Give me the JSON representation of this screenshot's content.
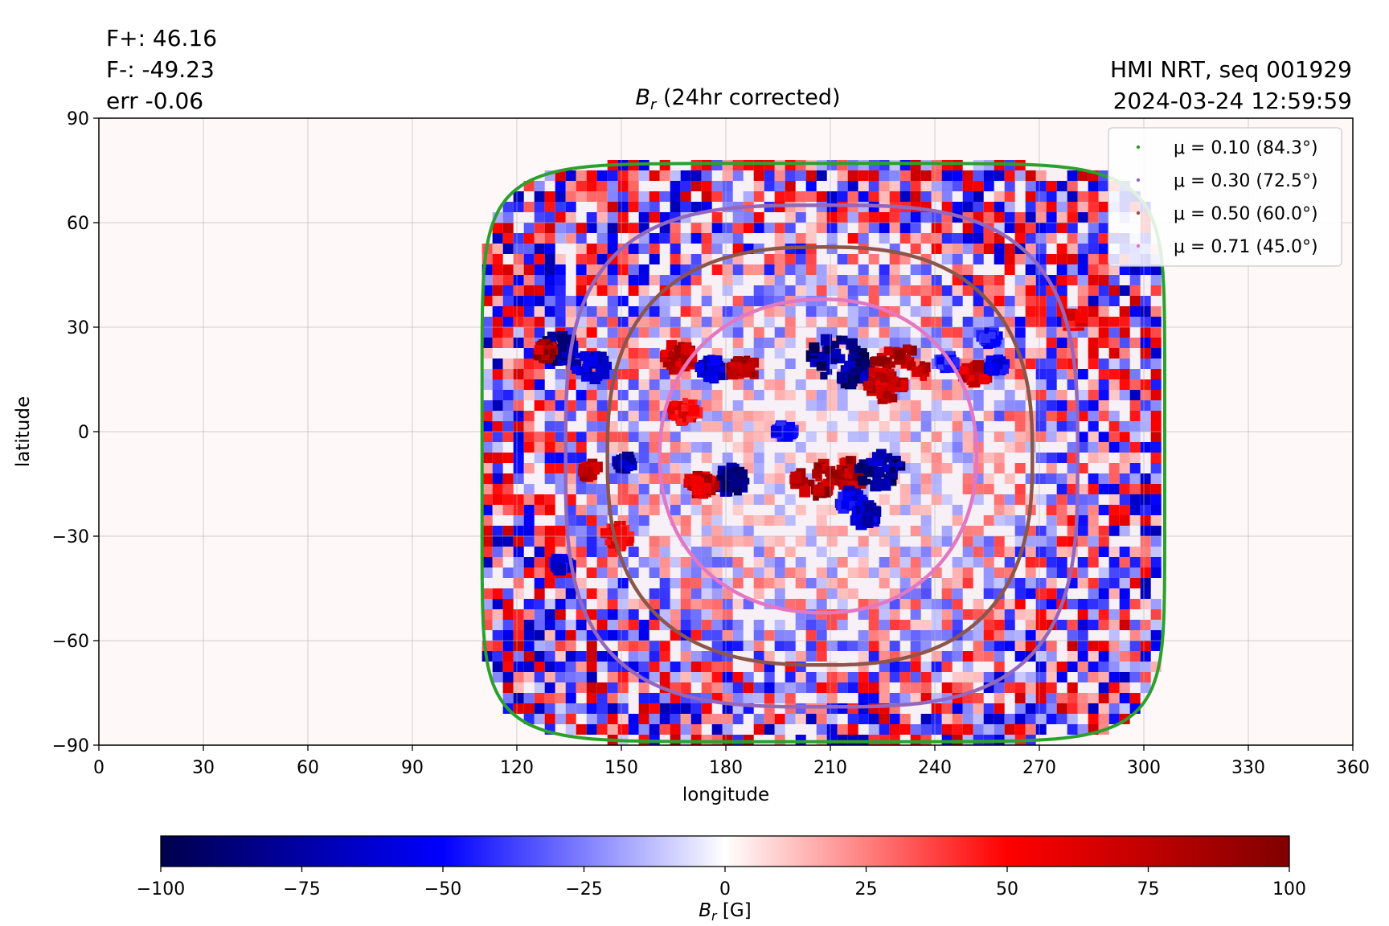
{
  "header": {
    "flux_pos": "F+: 46.16",
    "flux_neg": "F-: -49.23",
    "err": "err -0.06",
    "source": "HMI NRT, seq 001929",
    "timestamp": "2024-03-24 12:59:59"
  },
  "chart_data": {
    "type": "heatmap",
    "title_symbol": "B",
    "title_sub": "r",
    "title_rest": " (24hr corrected)",
    "xlabel": "longitude",
    "ylabel": "latitude",
    "xlim": [
      0,
      360
    ],
    "ylim": [
      -90,
      90
    ],
    "xticks": [
      0,
      30,
      60,
      90,
      120,
      150,
      180,
      210,
      240,
      270,
      300,
      330,
      360
    ],
    "yticks": [
      -90,
      -60,
      -30,
      0,
      30,
      60,
      90
    ],
    "ytick_labels": [
      "−90",
      "−60",
      "−30",
      "0",
      "30",
      "60",
      "90"
    ],
    "grid": true,
    "legend_position": "top-right",
    "disk_center": {
      "lon": 208,
      "lat": -7
    },
    "contours": [
      {
        "label": "μ = 0.10 (84.3°)",
        "color": "#2ca02c",
        "lat_top": 77,
        "lat_bottom": -89,
        "lon_left": 110,
        "lon_right": 306,
        "exponent": 7
      },
      {
        "label": "μ = 0.30 (72.5°)",
        "color": "#9467bd",
        "lat_top": 65,
        "lat_bottom": -79,
        "lon_left": 134,
        "lon_right": 281,
        "exponent": 3.2
      },
      {
        "label": "μ = 0.50 (60.0°)",
        "color": "#8c564b",
        "lat_top": 53,
        "lat_bottom": -67,
        "lon_left": 146,
        "lon_right": 268,
        "exponent": 2.6
      },
      {
        "label": "μ = 0.71 (45.0°)",
        "color": "#e377c2",
        "lat_top": 38,
        "lat_bottom": -52,
        "lon_left": 161,
        "lon_right": 252,
        "exponent": 2.15
      }
    ],
    "active_regions": [
      {
        "lon": 132,
        "lat": 24,
        "b": -100,
        "r": 4
      },
      {
        "lon": 128,
        "lat": 23,
        "b": 100,
        "r": 2
      },
      {
        "lon": 141,
        "lat": 19,
        "b": -80,
        "r": 4
      },
      {
        "lon": 166,
        "lat": 21,
        "b": 90,
        "r": 4
      },
      {
        "lon": 176,
        "lat": 18,
        "b": -80,
        "r": 3
      },
      {
        "lon": 185,
        "lat": 18,
        "b": 100,
        "r": 3
      },
      {
        "lon": 212,
        "lat": 21,
        "b": -100,
        "r": 6
      },
      {
        "lon": 218,
        "lat": 16,
        "b": -100,
        "r": 4
      },
      {
        "lon": 230,
        "lat": 18,
        "b": 100,
        "r": 6
      },
      {
        "lon": 226,
        "lat": 13,
        "b": 90,
        "r": 4
      },
      {
        "lon": 252,
        "lat": 17,
        "b": 90,
        "r": 3
      },
      {
        "lon": 258,
        "lat": 19,
        "b": -70,
        "r": 2
      },
      {
        "lon": 244,
        "lat": 20,
        "b": -60,
        "r": 2
      },
      {
        "lon": 181,
        "lat": -14,
        "b": -100,
        "r": 4
      },
      {
        "lon": 173,
        "lat": -15,
        "b": 90,
        "r": 3
      },
      {
        "lon": 206,
        "lat": -14,
        "b": 100,
        "r": 5
      },
      {
        "lon": 215,
        "lat": -12,
        "b": 100,
        "r": 4
      },
      {
        "lon": 224,
        "lat": -11,
        "b": -100,
        "r": 5
      },
      {
        "lon": 216,
        "lat": -20,
        "b": -70,
        "r": 3
      },
      {
        "lon": 220,
        "lat": -24,
        "b": -80,
        "r": 3
      },
      {
        "lon": 141,
        "lat": -11,
        "b": 90,
        "r": 2
      },
      {
        "lon": 151,
        "lat": -9,
        "b": -90,
        "r": 2
      },
      {
        "lon": 168,
        "lat": 6,
        "b": 70,
        "r": 3
      },
      {
        "lon": 197,
        "lat": 0,
        "b": -60,
        "r": 2
      },
      {
        "lon": 149,
        "lat": -30,
        "b": 70,
        "r": 3
      },
      {
        "lon": 256,
        "lat": 27,
        "b": -60,
        "r": 2
      },
      {
        "lon": 280,
        "lat": 32,
        "b": 70,
        "r": 2
      },
      {
        "lon": 133,
        "lat": -38,
        "b": -70,
        "r": 2
      }
    ],
    "colorbar": {
      "label_symbol": "B",
      "label_sub": "r",
      "label_rest": " [G]",
      "min": -100,
      "max": 100,
      "ticks": [
        -100,
        -75,
        -50,
        -25,
        0,
        25,
        50,
        75,
        100
      ],
      "tick_labels": [
        "−100",
        "−75",
        "−50",
        "−25",
        "0",
        "25",
        "50",
        "75",
        "100"
      ],
      "colormap": "seismic",
      "stops": [
        "#00004c",
        "#0000ff",
        "#ffffff",
        "#ff0000",
        "#800000"
      ]
    }
  }
}
